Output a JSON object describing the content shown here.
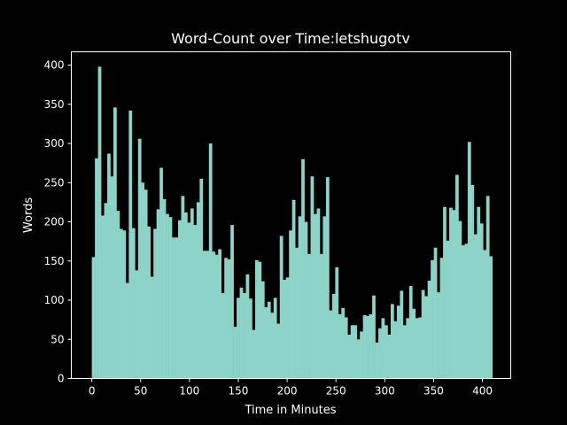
{
  "chart_data": {
    "type": "bar",
    "title": "Word-Count over Time:letshugotv",
    "xlabel": "Time in Minutes",
    "ylabel": "Words",
    "xlim": [
      -21,
      429
    ],
    "ylim": [
      0,
      417
    ],
    "x_start": 0,
    "bin_width": 3.155,
    "xticks": [
      0,
      50,
      100,
      150,
      200,
      250,
      300,
      350,
      400
    ],
    "yticks": [
      0,
      50,
      100,
      150,
      200,
      250,
      300,
      350,
      400
    ],
    "grid": false,
    "bar_color": "#8dd3c7",
    "values": [
      155,
      281,
      398,
      208,
      224,
      287,
      258,
      346,
      214,
      191,
      189,
      122,
      342,
      192,
      138,
      306,
      250,
      241,
      194,
      130,
      191,
      216,
      269,
      229,
      210,
      206,
      180,
      180,
      202,
      233,
      212,
      199,
      217,
      196,
      225,
      255,
      163,
      163,
      300,
      162,
      158,
      165,
      109,
      154,
      152,
      196,
      66,
      103,
      116,
      109,
      133,
      102,
      62,
      151,
      149,
      124,
      91,
      98,
      84,
      103,
      70,
      182,
      126,
      129,
      189,
      228,
      167,
      207,
      280,
      200,
      159,
      258,
      210,
      217,
      159,
      207,
      257,
      87,
      108,
      142,
      82,
      90,
      78,
      56,
      68,
      68,
      50,
      60,
      81,
      80,
      82,
      106,
      46,
      64,
      77,
      68,
      56,
      95,
      73,
      93,
      112,
      68,
      77,
      118,
      89,
      77,
      78,
      113,
      105,
      125,
      151,
      167,
      110,
      154,
      219,
      176,
      218,
      215,
      260,
      201,
      170,
      172,
      302,
      247,
      184,
      219,
      198,
      164,
      233,
      156
    ]
  }
}
